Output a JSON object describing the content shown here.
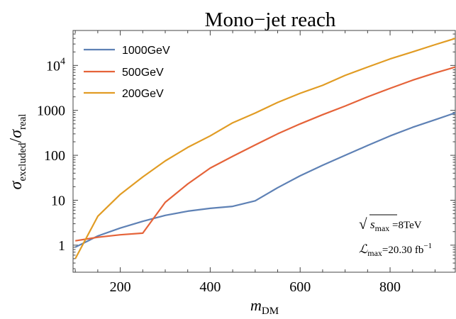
{
  "chart_data": {
    "type": "line",
    "title": "Mono−jet reach",
    "xlabel": "m",
    "xlabel_sub": "DM",
    "ylabel_parts": {
      "sym1": "σ",
      "sub1": "excluded",
      "slash": "/",
      "sym2": "σ",
      "sub2": "real"
    },
    "xlim": [
      95,
      945
    ],
    "ylim": [
      0.25,
      60000
    ],
    "yscale": "log",
    "x_ticks": [
      200,
      400,
      600,
      800
    ],
    "y_ticks": [
      {
        "value": 1,
        "label": "1"
      },
      {
        "value": 10,
        "label": "10"
      },
      {
        "value": 100,
        "label": "100"
      },
      {
        "value": 1000,
        "label": "1000"
      },
      {
        "value": 10000,
        "label": "10",
        "sup": "4"
      }
    ],
    "legend_position": "top-left",
    "series": [
      {
        "name": "1000GeV",
        "color": "#5e81b5",
        "x": [
          100,
          150,
          200,
          250,
          300,
          350,
          400,
          450,
          500,
          550,
          600,
          650,
          700,
          750,
          800,
          850,
          900,
          945
        ],
        "y": [
          0.9,
          1.6,
          2.4,
          3.4,
          4.6,
          5.7,
          6.6,
          7.3,
          9.7,
          19,
          35,
          60,
          100,
          165,
          270,
          420,
          620,
          880
        ]
      },
      {
        "name": "500GeV",
        "color": "#e56339",
        "x": [
          100,
          150,
          200,
          250,
          300,
          350,
          400,
          450,
          500,
          550,
          600,
          650,
          700,
          750,
          800,
          850,
          900,
          945
        ],
        "y": [
          1.25,
          1.5,
          1.7,
          1.85,
          9,
          23,
          52,
          95,
          170,
          300,
          500,
          800,
          1250,
          2000,
          3100,
          4700,
          6800,
          9200
        ]
      },
      {
        "name": "200GeV",
        "color": "#e19c24",
        "x": [
          100,
          150,
          200,
          250,
          300,
          350,
          400,
          450,
          500,
          550,
          600,
          650,
          700,
          750,
          800,
          850,
          900,
          945
        ],
        "y": [
          0.5,
          4.4,
          13.5,
          33,
          75,
          150,
          270,
          530,
          870,
          1500,
          2400,
          3600,
          6000,
          9200,
          14000,
          20000,
          29000,
          40000
        ]
      }
    ],
    "annotations": {
      "sqrt_symbol": "√",
      "sqrt_var": "s",
      "sqrt_sub": "max",
      "sqrt_rest": " =8TeV",
      "lumi_symbol": "ℒ",
      "lumi_sub": "max",
      "lumi_rest": "=20.30 fb",
      "lumi_sup": "−1"
    }
  }
}
